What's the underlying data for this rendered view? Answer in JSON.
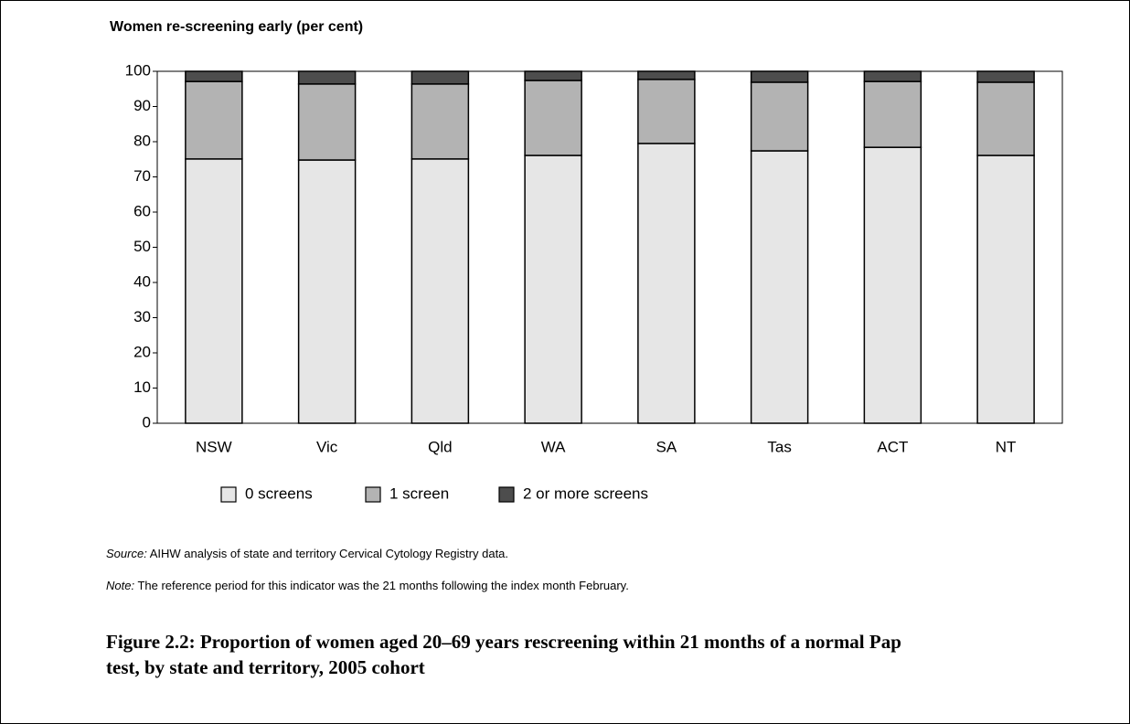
{
  "chart_data": {
    "type": "bar",
    "stacked": true,
    "subtitle": "Women re-screening early (per cent)",
    "categories": [
      "NSW",
      "Vic",
      "Qld",
      "WA",
      "SA",
      "Tas",
      "ACT",
      "NT"
    ],
    "series": [
      {
        "name": "0 screens",
        "color": "#e6e6e6",
        "values": [
          75.1,
          74.8,
          75.1,
          76.1,
          79.5,
          77.4,
          78.4,
          76.1
        ]
      },
      {
        "name": "1 screen",
        "color": "#b3b3b3",
        "values": [
          22.0,
          21.6,
          21.3,
          21.3,
          18.2,
          19.5,
          18.7,
          20.8
        ]
      },
      {
        "name": "2 or more screens",
        "color": "#4d4d4d",
        "values": [
          2.9,
          3.6,
          3.6,
          2.6,
          2.3,
          3.1,
          2.9,
          3.1
        ]
      }
    ],
    "ylim": [
      0,
      100
    ],
    "yticks": [
      0,
      10,
      20,
      30,
      40,
      50,
      60,
      70,
      80,
      90,
      100
    ],
    "legend": "bottom",
    "source": {
      "label": "Source:",
      "text": " AIHW analysis of state and territory Cervical Cytology Registry data."
    },
    "note": {
      "label": "Note:",
      "text": " The reference period for this indicator was the 21 months following the index month February."
    },
    "caption": "Figure 2.2: Proportion of women aged 20–69 years rescreening within 21 months of a normal Pap test, by state and territory, 2005 cohort"
  }
}
